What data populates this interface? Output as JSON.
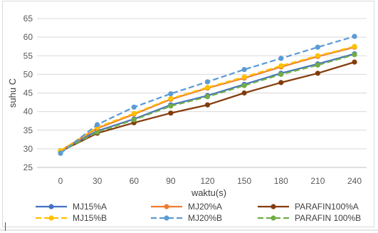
{
  "chart_data": {
    "type": "line",
    "title": "",
    "xlabel": "waktu(s)",
    "ylabel": "suhu C",
    "x": [
      0,
      30,
      60,
      90,
      120,
      150,
      180,
      210,
      240
    ],
    "ylim": [
      25,
      65
    ],
    "yticks": [
      25,
      30,
      35,
      40,
      45,
      50,
      55,
      60,
      65
    ],
    "grid": true,
    "legend_position": "bottom",
    "series": [
      {
        "name": "MJ15%A",
        "color": "#4472c4",
        "dash": "solid",
        "values": [
          29.5,
          34.8,
          38.0,
          41.8,
          44.3,
          47.3,
          50.3,
          52.8,
          55.5
        ]
      },
      {
        "name": "MJ20%A",
        "color": "#ed7d31",
        "dash": "solid",
        "values": [
          29.5,
          35.5,
          39.3,
          43.3,
          46.3,
          49.0,
          52.0,
          54.8,
          57.3
        ]
      },
      {
        "name": "PARAFIN100%A",
        "color": "#843c0c",
        "dash": "solid",
        "values": [
          29.3,
          34.2,
          37.0,
          39.6,
          41.8,
          45.0,
          47.8,
          50.3,
          53.3
        ]
      },
      {
        "name": "MJ15%B",
        "color": "#ffc000",
        "dash": "dashed",
        "values": [
          29.5,
          35.8,
          39.5,
          43.5,
          46.5,
          49.3,
          52.3,
          55.0,
          57.5
        ]
      },
      {
        "name": "MJ20%B",
        "color": "#5b9bd5",
        "dash": "dashed",
        "values": [
          28.8,
          36.5,
          41.2,
          44.8,
          48.0,
          51.3,
          54.3,
          57.3,
          60.2
        ]
      },
      {
        "name": "PARAFIN 100%B",
        "color": "#70ad47",
        "dash": "dashed",
        "values": [
          29.3,
          34.5,
          37.8,
          41.5,
          44.0,
          47.0,
          50.0,
          52.5,
          55.3
        ]
      }
    ]
  }
}
